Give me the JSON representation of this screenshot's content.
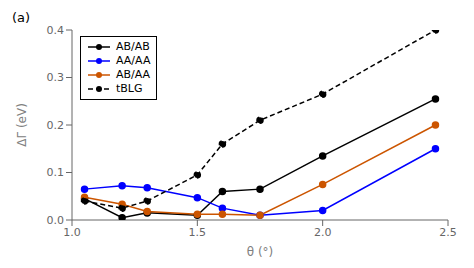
{
  "chart_data": {
    "type": "line",
    "x": [
      1.05,
      1.2,
      1.3,
      1.5,
      1.6,
      1.75,
      2.0,
      2.45
    ],
    "series": [
      {
        "name": "AB/AB",
        "color": "#000000",
        "values": [
          0.045,
          0.005,
          0.015,
          0.01,
          0.06,
          0.065,
          0.135,
          0.255
        ],
        "marker": "circle",
        "line_style": "solid"
      },
      {
        "name": "AA/AA",
        "color": "#0000ff",
        "values": [
          0.065,
          0.072,
          0.068,
          0.047,
          0.025,
          0.01,
          0.02,
          0.15
        ],
        "marker": "circle",
        "line_style": "solid"
      },
      {
        "name": "AB/AA",
        "color": "#cc5500",
        "values": [
          0.048,
          0.033,
          0.018,
          0.012,
          0.012,
          0.01,
          0.075,
          0.2
        ],
        "marker": "circle",
        "line_style": "solid"
      },
      {
        "name": "tBLG",
        "color": "#000000",
        "values": [
          0.04,
          0.025,
          0.04,
          0.095,
          0.16,
          0.21,
          0.265,
          0.4
        ],
        "marker": "circle",
        "line_style": "dashed"
      }
    ],
    "xlabel": "θ (°)",
    "ylabel": "ΔΓ (eV)",
    "xlim": [
      1.0,
      2.5
    ],
    "ylim": [
      0.0,
      0.4
    ],
    "xticks": [
      {
        "value": 1.0,
        "label": "1.0"
      },
      1.5,
      {
        "value": 2.0,
        "label": "2.0"
      },
      2.5
    ],
    "yticks": [
      {
        "value": 0.0,
        "label": "0.0"
      },
      0.1,
      0.2,
      0.3,
      0.4
    ],
    "legend": "upper left",
    "grid": false,
    "annotations": [
      "(a)"
    ]
  }
}
